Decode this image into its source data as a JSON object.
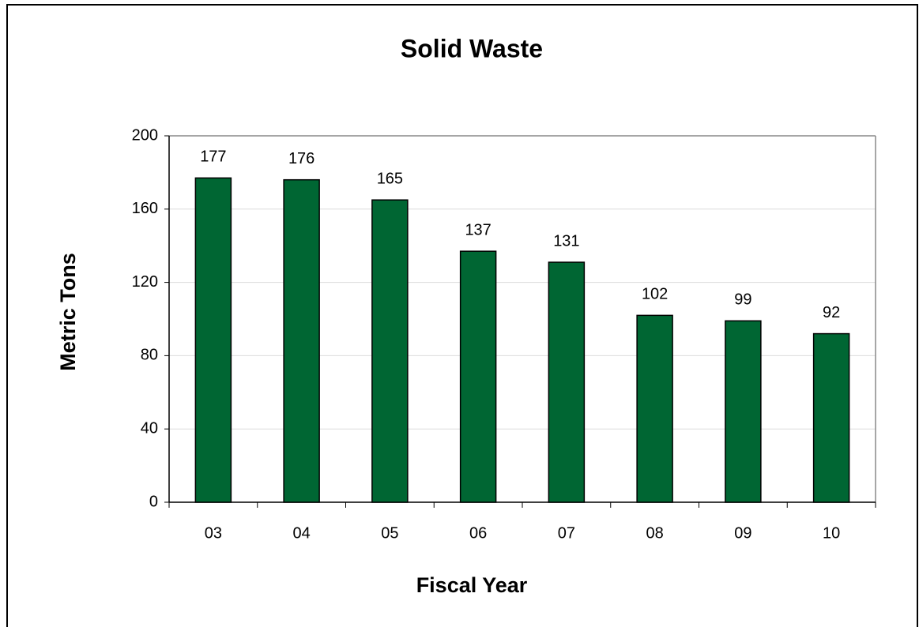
{
  "chart_data": {
    "type": "bar",
    "title": "Solid Waste",
    "x_label": "Fiscal Year",
    "y_label": "Metric Tons",
    "categories": [
      "03",
      "04",
      "05",
      "06",
      "07",
      "08",
      "09",
      "10"
    ],
    "values": [
      177,
      176,
      165,
      137,
      131,
      102,
      99,
      92
    ],
    "color": "#006633",
    "ylim": [
      0,
      200
    ],
    "yticks": [
      0,
      40,
      80,
      120,
      160,
      200
    ],
    "grid": true
  }
}
